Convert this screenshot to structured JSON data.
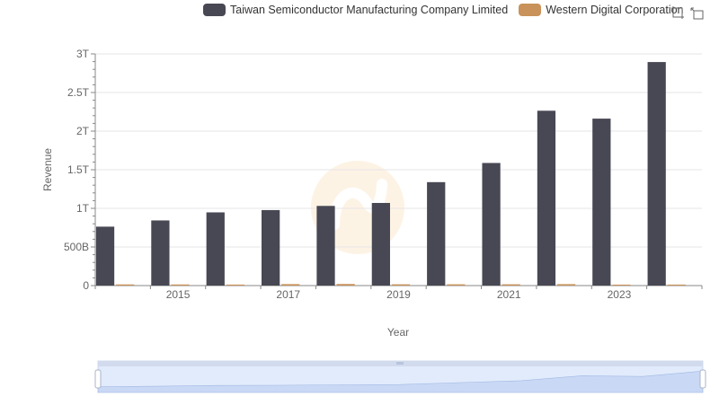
{
  "legend": {
    "items": [
      {
        "label": "Taiwan Semiconductor Manufacturing Company Limited",
        "color": "#484854"
      },
      {
        "label": "Western Digital Corporation",
        "color": "#c8925a"
      }
    ]
  },
  "toolbox": {
    "icons": [
      "zoom-icon",
      "restore-icon"
    ]
  },
  "chart_data": {
    "type": "bar",
    "xlabel": "Year",
    "ylabel": "Revenue",
    "ylim": [
      0,
      3000000000000
    ],
    "yticks": [
      {
        "value": 0,
        "label": "0"
      },
      {
        "value": 500000000000,
        "label": "500B"
      },
      {
        "value": 1000000000000,
        "label": "1T"
      },
      {
        "value": 1500000000000,
        "label": "1.5T"
      },
      {
        "value": 2000000000000,
        "label": "2T"
      },
      {
        "value": 2500000000000,
        "label": "2.5T"
      },
      {
        "value": 3000000000000,
        "label": "3T"
      }
    ],
    "categories": [
      "2014",
      "2015",
      "2016",
      "2017",
      "2018",
      "2019",
      "2020",
      "2021",
      "2022",
      "2023",
      "2024"
    ],
    "xtick_labels": [
      "2015",
      "2017",
      "2019",
      "2021",
      "2023"
    ],
    "grid": true,
    "legend_position": "top-right",
    "series": [
      {
        "name": "Taiwan Semiconductor Manufacturing Company Limited",
        "color": "#484854",
        "values": [
          763000000000,
          843500000000,
          947900000000,
          977400000000,
          1031500000000,
          1070000000000,
          1339300000000,
          1587400000000,
          2263900000000,
          2161700000000,
          2894300000000
        ]
      },
      {
        "name": "Western Digital Corporation",
        "color": "#c8925a",
        "values": [
          15100000000,
          14600000000,
          13000000000,
          19100000000,
          20600000000,
          16600000000,
          16700000000,
          16900000000,
          18800000000,
          12300000000,
          13000000000
        ]
      }
    ]
  }
}
